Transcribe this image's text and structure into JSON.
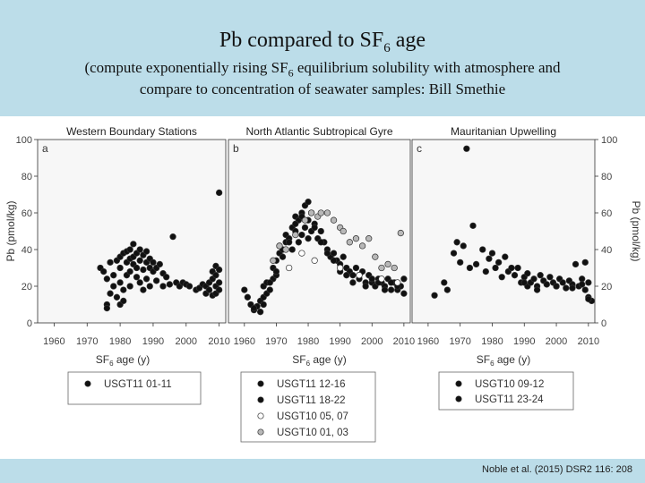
{
  "slide": {
    "title": "Pb compared to SF",
    "title_sub": "6",
    "title_end": " age",
    "subtitle_line1_a": "(compute exponentially rising SF",
    "subtitle_line1_sub": "6",
    "subtitle_line1_b": " equilibrium solubility with atmosphere and",
    "subtitle_line2": "compare to concentration of seawater samples: Bill Smethie",
    "citation": "Noble et al. (2015) DSR2 116: 208",
    "header_color": "#bcdde9"
  },
  "chart_data": [
    {
      "type": "scatter",
      "title": "Western Boundary Stations",
      "panel_letter": "a",
      "xlabel": "SF6 age (y)",
      "ylabel": "Pb (pmol/kg)",
      "xlim": [
        1955,
        2012
      ],
      "ylim": [
        0,
        100
      ],
      "xticks": [
        1960,
        1970,
        1980,
        1990,
        2000,
        2010
      ],
      "yticks": [
        0,
        20,
        40,
        60,
        80,
        100
      ],
      "legend": [
        "USGT11 01-11"
      ],
      "series": [
        {
          "name": "USGT11 01-11",
          "color": "#111111",
          "points": [
            [
              1974,
              30
            ],
            [
              1975,
              28
            ],
            [
              1976,
              24
            ],
            [
              1976,
              10
            ],
            [
              1976,
              8
            ],
            [
              1977,
              16
            ],
            [
              1977,
              33
            ],
            [
              1978,
              20
            ],
            [
              1978,
              26
            ],
            [
              1979,
              34
            ],
            [
              1979,
              14
            ],
            [
              1980,
              36
            ],
            [
              1980,
              30
            ],
            [
              1980,
              22
            ],
            [
              1980,
              10
            ],
            [
              1981,
              18
            ],
            [
              1981,
              38
            ],
            [
              1981,
              12
            ],
            [
              1982,
              33
            ],
            [
              1982,
              39
            ],
            [
              1982,
              26
            ],
            [
              1983,
              35
            ],
            [
              1983,
              40
            ],
            [
              1983,
              28
            ],
            [
              1983,
              20
            ],
            [
              1984,
              36
            ],
            [
              1984,
              43
            ],
            [
              1984,
              32
            ],
            [
              1985,
              38
            ],
            [
              1985,
              30
            ],
            [
              1985,
              25
            ],
            [
              1986,
              34
            ],
            [
              1986,
              40
            ],
            [
              1986,
              22
            ],
            [
              1987,
              37
            ],
            [
              1987,
              29
            ],
            [
              1987,
              18
            ],
            [
              1988,
              33
            ],
            [
              1988,
              39
            ],
            [
              1988,
              24
            ],
            [
              1989,
              35
            ],
            [
              1989,
              30
            ],
            [
              1989,
              20
            ],
            [
              1990,
              33
            ],
            [
              1990,
              28
            ],
            [
              1991,
              30
            ],
            [
              1991,
              23
            ],
            [
              1992,
              32
            ],
            [
              1993,
              27
            ],
            [
              1993,
              20
            ],
            [
              1994,
              25
            ],
            [
              1995,
              21
            ],
            [
              1996,
              47
            ],
            [
              1997,
              22
            ],
            [
              1998,
              20
            ],
            [
              1999,
              22
            ],
            [
              2000,
              21
            ],
            [
              2001,
              20
            ],
            [
              2003,
              18
            ],
            [
              2004,
              19
            ],
            [
              2005,
              21
            ],
            [
              2006,
              20
            ],
            [
              2006,
              16
            ],
            [
              2007,
              22
            ],
            [
              2007,
              18
            ],
            [
              2008,
              28
            ],
            [
              2008,
              24
            ],
            [
              2008,
              15
            ],
            [
              2009,
              31
            ],
            [
              2009,
              26
            ],
            [
              2009,
              20
            ],
            [
              2009,
              16
            ],
            [
              2010,
              29
            ],
            [
              2010,
              22
            ],
            [
              2010,
              18
            ],
            [
              2010,
              71
            ]
          ]
        }
      ]
    },
    {
      "type": "scatter",
      "title": "North Atlantic Subtropical Gyre",
      "panel_letter": "b",
      "xlabel": "SF6 age (y)",
      "xlim": [
        1955,
        2012
      ],
      "ylim": [
        0,
        100
      ],
      "xticks": [
        1960,
        1970,
        1980,
        1990,
        2000,
        2010
      ],
      "yticks": [
        0,
        20,
        40,
        60,
        80,
        100
      ],
      "legend": [
        "USGT11 12-16",
        "USGT11 18-22",
        "USGT10 05, 07",
        "USGT10 01, 03"
      ],
      "series": [
        {
          "name": "USGT11 12-16",
          "color": "#111111",
          "points": [
            [
              1960,
              18
            ],
            [
              1961,
              14
            ],
            [
              1962,
              10
            ],
            [
              1963,
              7
            ],
            [
              1964,
              9
            ],
            [
              1965,
              12
            ],
            [
              1966,
              14
            ],
            [
              1966,
              20
            ],
            [
              1967,
              16
            ],
            [
              1967,
              22
            ],
            [
              1968,
              18
            ],
            [
              1969,
              30
            ],
            [
              1969,
              24
            ],
            [
              1970,
              34
            ],
            [
              1970,
              26
            ],
            [
              1971,
              38
            ],
            [
              1971,
              42
            ],
            [
              1972,
              36
            ],
            [
              1973,
              44
            ],
            [
              1973,
              48
            ],
            [
              1974,
              46
            ],
            [
              1975,
              52
            ],
            [
              1975,
              40
            ],
            [
              1976,
              50
            ],
            [
              1976,
              58
            ],
            [
              1977,
              56
            ],
            [
              1977,
              44
            ],
            [
              1978,
              60
            ],
            [
              1978,
              48
            ],
            [
              1979,
              64
            ],
            [
              1979,
              52
            ],
            [
              1980,
              56
            ],
            [
              1980,
              46
            ],
            [
              1981,
              60
            ],
            [
              1981,
              50
            ],
            [
              1982,
              54
            ],
            [
              1983,
              46
            ],
            [
              1984,
              50
            ],
            [
              1985,
              44
            ],
            [
              1986,
              40
            ],
            [
              1987,
              36
            ],
            [
              1988,
              38
            ],
            [
              1989,
              34
            ],
            [
              1990,
              32
            ],
            [
              1991,
              36
            ],
            [
              1992,
              30
            ],
            [
              1993,
              28
            ],
            [
              1994,
              26
            ],
            [
              1995,
              30
            ],
            [
              1996,
              24
            ],
            [
              1997,
              28
            ],
            [
              1998,
              22
            ],
            [
              1999,
              26
            ],
            [
              2000,
              22
            ],
            [
              2001,
              20
            ],
            [
              2002,
              24
            ],
            [
              2003,
              22
            ],
            [
              2004,
              20
            ],
            [
              2005,
              24
            ],
            [
              2006,
              18
            ],
            [
              2007,
              22
            ],
            [
              2008,
              18
            ],
            [
              2009,
              20
            ],
            [
              2010,
              16
            ]
          ]
        },
        {
          "name": "USGT11 18-22",
          "color": "#111111",
          "points": [
            [
              1963,
              8
            ],
            [
              1965,
              6
            ],
            [
              1966,
              10
            ],
            [
              1968,
              22
            ],
            [
              1970,
              28
            ],
            [
              1972,
              40
            ],
            [
              1974,
              44
            ],
            [
              1976,
              54
            ],
            [
              1978,
              58
            ],
            [
              1980,
              66
            ],
            [
              1982,
              52
            ],
            [
              1984,
              44
            ],
            [
              1986,
              38
            ],
            [
              1988,
              34
            ],
            [
              1990,
              28
            ],
            [
              1992,
              26
            ],
            [
              1994,
              22
            ],
            [
              1996,
              26
            ],
            [
              1998,
              20
            ],
            [
              2000,
              24
            ],
            [
              2002,
              22
            ],
            [
              2004,
              18
            ],
            [
              2006,
              22
            ],
            [
              2008,
              20
            ],
            [
              2010,
              24
            ]
          ]
        },
        {
          "name": "USGT10 05, 07",
          "color": "#ffffff",
          "points": [
            [
              1974,
              30
            ],
            [
              1978,
              38
            ],
            [
              1982,
              34
            ],
            [
              1990,
              30
            ],
            [
              1996,
              26
            ],
            [
              2003,
              24
            ],
            [
              2008,
              22
            ]
          ]
        },
        {
          "name": "USGT10 01, 03",
          "color": "#b8b8b8",
          "points": [
            [
              1969,
              34
            ],
            [
              1971,
              42
            ],
            [
              1973,
              40
            ],
            [
              1976,
              48
            ],
            [
              1979,
              56
            ],
            [
              1981,
              60
            ],
            [
              1983,
              58
            ],
            [
              1984,
              60
            ],
            [
              1986,
              60
            ],
            [
              1988,
              56
            ],
            [
              1990,
              52
            ],
            [
              1991,
              50
            ],
            [
              1993,
              44
            ],
            [
              1995,
              46
            ],
            [
              1997,
              42
            ],
            [
              1999,
              46
            ],
            [
              2001,
              36
            ],
            [
              2003,
              30
            ],
            [
              2005,
              32
            ],
            [
              2007,
              30
            ],
            [
              2009,
              49
            ]
          ]
        }
      ]
    },
    {
      "type": "scatter",
      "title": "Mauritanian Upwelling",
      "panel_letter": "c",
      "xlabel": "SF6 age (y)",
      "ylabel": "Pb (pmol/kg)",
      "xlim": [
        1955,
        2012
      ],
      "ylim": [
        0,
        100
      ],
      "xticks": [
        1960,
        1970,
        1980,
        1990,
        2000,
        2010
      ],
      "yticks": [
        0,
        20,
        40,
        60,
        80,
        100
      ],
      "legend": [
        "USGT10 09-12",
        "USGT11 23-24"
      ],
      "series": [
        {
          "name": "USGT10 09-12",
          "color": "#111111",
          "points": [
            [
              1962,
              15
            ],
            [
              1965,
              22
            ],
            [
              1968,
              38
            ],
            [
              1969,
              44
            ],
            [
              1970,
              33
            ],
            [
              1971,
              42
            ],
            [
              1972,
              95
            ],
            [
              1973,
              30
            ],
            [
              1974,
              53
            ],
            [
              1975,
              32
            ],
            [
              1977,
              40
            ],
            [
              1978,
              28
            ],
            [
              1979,
              35
            ],
            [
              1980,
              38
            ],
            [
              1981,
              30
            ],
            [
              1982,
              33
            ],
            [
              1983,
              25
            ],
            [
              1984,
              36
            ],
            [
              1985,
              28
            ],
            [
              1986,
              30
            ],
            [
              1987,
              26
            ],
            [
              1988,
              30
            ],
            [
              1989,
              22
            ],
            [
              1990,
              25
            ],
            [
              1991,
              20
            ],
            [
              1991,
              27
            ],
            [
              1992,
              22
            ],
            [
              1993,
              24
            ],
            [
              1994,
              20
            ],
            [
              1995,
              26
            ],
            [
              1996,
              23
            ],
            [
              1997,
              21
            ],
            [
              1998,
              25
            ],
            [
              1999,
              22
            ],
            [
              2000,
              20
            ],
            [
              2001,
              24
            ],
            [
              2002,
              22
            ],
            [
              2003,
              19
            ],
            [
              2004,
              23
            ],
            [
              2005,
              21
            ],
            [
              2006,
              32
            ],
            [
              2007,
              20
            ],
            [
              2008,
              24
            ],
            [
              2009,
              33
            ],
            [
              2009,
              18
            ],
            [
              2010,
              22
            ],
            [
              2010,
              14
            ],
            [
              2011,
              12
            ]
          ]
        },
        {
          "name": "USGT11 23-24",
          "color": "#111111",
          "points": [
            [
              1966,
              18
            ],
            [
              1990,
              22
            ],
            [
              1994,
              18
            ],
            [
              2000,
              20
            ],
            [
              2005,
              19
            ],
            [
              2008,
              21
            ],
            [
              2010,
              13
            ]
          ]
        }
      ]
    }
  ]
}
